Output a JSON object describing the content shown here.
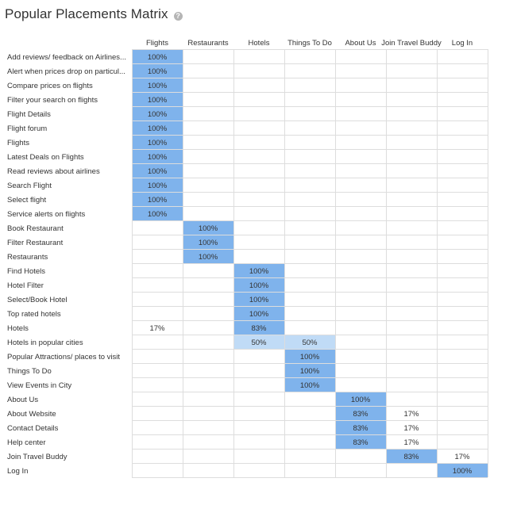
{
  "title": "Popular Placements Matrix",
  "help_icon": "question-circle-icon",
  "colors": {
    "strong": "#7fb3ec",
    "light": "#c0dbf6",
    "grid": "#dddddd"
  },
  "chart_data": {
    "type": "heatmap",
    "columns": [
      "Flights",
      "Restaurants",
      "Hotels",
      "Things To Do",
      "About Us",
      "Join Travel Buddy",
      "Log In"
    ],
    "rows": [
      "Add reviews/ feedback on Airlines...",
      "Alert when prices drop on particul...",
      "Compare prices on flights",
      "Filter your search on flights",
      "Flight Details",
      "Flight forum",
      "Flights",
      "Latest Deals on Flights",
      "Read reviews about airlines",
      "Search Flight",
      "Select flight",
      "Service alerts on flights",
      "Book Restaurant",
      "Filter Restaurant",
      "Restaurants",
      "Find Hotels",
      "Hotel Filter",
      "Select/Book Hotel",
      "Top rated hotels",
      "Hotels",
      "Hotels in popular cities",
      "Popular Attractions/ places to visit",
      "Things To Do",
      "View Events in City",
      "About Us",
      "About Website",
      "Contact Details",
      "Help center",
      "Join Travel Buddy",
      "Log In"
    ],
    "values": [
      [
        100,
        null,
        null,
        null,
        null,
        null,
        null
      ],
      [
        100,
        null,
        null,
        null,
        null,
        null,
        null
      ],
      [
        100,
        null,
        null,
        null,
        null,
        null,
        null
      ],
      [
        100,
        null,
        null,
        null,
        null,
        null,
        null
      ],
      [
        100,
        null,
        null,
        null,
        null,
        null,
        null
      ],
      [
        100,
        null,
        null,
        null,
        null,
        null,
        null
      ],
      [
        100,
        null,
        null,
        null,
        null,
        null,
        null
      ],
      [
        100,
        null,
        null,
        null,
        null,
        null,
        null
      ],
      [
        100,
        null,
        null,
        null,
        null,
        null,
        null
      ],
      [
        100,
        null,
        null,
        null,
        null,
        null,
        null
      ],
      [
        100,
        null,
        null,
        null,
        null,
        null,
        null
      ],
      [
        100,
        null,
        null,
        null,
        null,
        null,
        null
      ],
      [
        null,
        100,
        null,
        null,
        null,
        null,
        null
      ],
      [
        null,
        100,
        null,
        null,
        null,
        null,
        null
      ],
      [
        null,
        100,
        null,
        null,
        null,
        null,
        null
      ],
      [
        null,
        null,
        100,
        null,
        null,
        null,
        null
      ],
      [
        null,
        null,
        100,
        null,
        null,
        null,
        null
      ],
      [
        null,
        null,
        100,
        null,
        null,
        null,
        null
      ],
      [
        null,
        null,
        100,
        null,
        null,
        null,
        null
      ],
      [
        17,
        null,
        83,
        null,
        null,
        null,
        null
      ],
      [
        null,
        null,
        50,
        50,
        null,
        null,
        null
      ],
      [
        null,
        null,
        null,
        100,
        null,
        null,
        null
      ],
      [
        null,
        null,
        null,
        100,
        null,
        null,
        null
      ],
      [
        null,
        null,
        null,
        100,
        null,
        null,
        null
      ],
      [
        null,
        null,
        null,
        null,
        100,
        null,
        null
      ],
      [
        null,
        null,
        null,
        null,
        83,
        17,
        null
      ],
      [
        null,
        null,
        null,
        null,
        83,
        17,
        null
      ],
      [
        null,
        null,
        null,
        null,
        83,
        17,
        null
      ],
      [
        null,
        null,
        null,
        null,
        null,
        83,
        17
      ],
      [
        null,
        null,
        null,
        null,
        null,
        null,
        100
      ]
    ],
    "value_suffix": "%",
    "shading": [
      [
        "s",
        "",
        "",
        "",
        "",
        "",
        ""
      ],
      [
        "s",
        "",
        "",
        "",
        "",
        "",
        ""
      ],
      [
        "s",
        "",
        "",
        "",
        "",
        "",
        ""
      ],
      [
        "s",
        "",
        "",
        "",
        "",
        "",
        ""
      ],
      [
        "s",
        "",
        "",
        "",
        "",
        "",
        ""
      ],
      [
        "s",
        "",
        "",
        "",
        "",
        "",
        ""
      ],
      [
        "s",
        "",
        "",
        "",
        "",
        "",
        ""
      ],
      [
        "s",
        "",
        "",
        "",
        "",
        "",
        ""
      ],
      [
        "s",
        "",
        "",
        "",
        "",
        "",
        ""
      ],
      [
        "s",
        "",
        "",
        "",
        "",
        "",
        ""
      ],
      [
        "s",
        "",
        "",
        "",
        "",
        "",
        ""
      ],
      [
        "s",
        "",
        "",
        "",
        "",
        "",
        ""
      ],
      [
        "",
        "s",
        "",
        "",
        "",
        "",
        ""
      ],
      [
        "",
        "s",
        "",
        "",
        "",
        "",
        ""
      ],
      [
        "",
        "s",
        "",
        "",
        "",
        "",
        ""
      ],
      [
        "",
        "",
        "s",
        "",
        "",
        "",
        ""
      ],
      [
        "",
        "",
        "s",
        "",
        "",
        "",
        ""
      ],
      [
        "",
        "",
        "s",
        "",
        "",
        "",
        ""
      ],
      [
        "",
        "",
        "s",
        "",
        "",
        "",
        ""
      ],
      [
        "",
        "",
        "s",
        "",
        "",
        "",
        ""
      ],
      [
        "",
        "",
        "l",
        "l",
        "",
        "",
        ""
      ],
      [
        "",
        "",
        "",
        "s",
        "",
        "",
        ""
      ],
      [
        "",
        "",
        "",
        "s",
        "",
        "",
        ""
      ],
      [
        "",
        "",
        "",
        "s",
        "",
        "",
        ""
      ],
      [
        "",
        "",
        "",
        "",
        "s",
        "",
        ""
      ],
      [
        "",
        "",
        "",
        "",
        "s",
        "",
        ""
      ],
      [
        "",
        "",
        "",
        "",
        "s",
        "",
        ""
      ],
      [
        "",
        "",
        "",
        "",
        "s",
        "",
        ""
      ],
      [
        "",
        "",
        "",
        "",
        "",
        "s",
        ""
      ],
      [
        "",
        "",
        "",
        "",
        "",
        "",
        "s"
      ]
    ]
  }
}
